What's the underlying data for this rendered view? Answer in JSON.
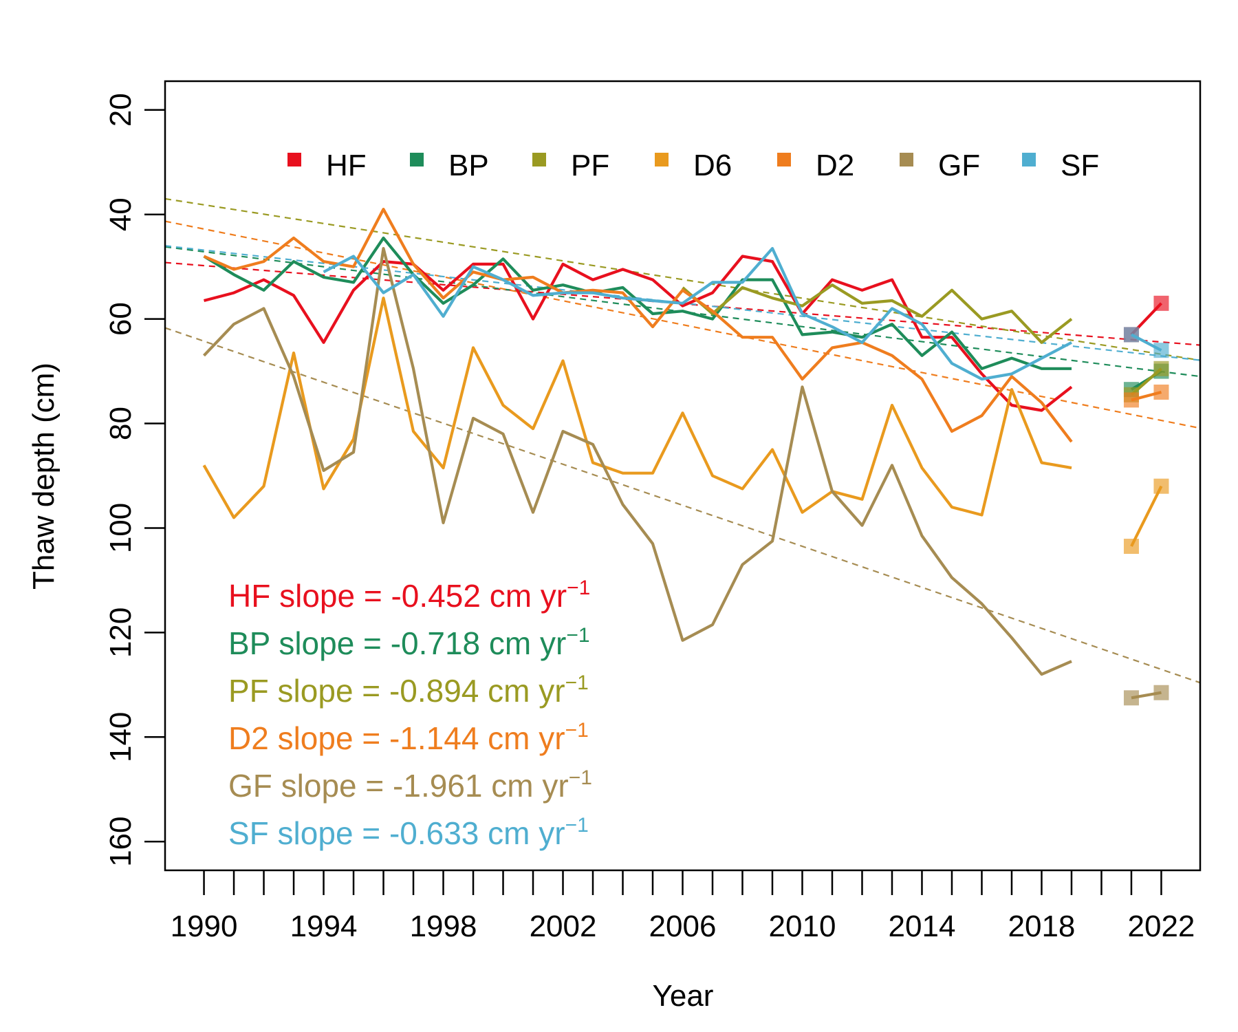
{
  "chart_data": {
    "type": "line",
    "title": "",
    "xlabel": "Year",
    "ylabel": "Thaw depth (cm)",
    "xlim": [
      1988.7,
      2023.3
    ],
    "ylim": [
      165.5,
      14.5
    ],
    "y_inverted": true,
    "x_ticks": [
      1990,
      1991,
      1992,
      1993,
      1994,
      1995,
      1996,
      1997,
      1998,
      1999,
      2000,
      2001,
      2002,
      2003,
      2004,
      2005,
      2006,
      2007,
      2008,
      2009,
      2010,
      2011,
      2012,
      2013,
      2014,
      2015,
      2016,
      2017,
      2018,
      2019,
      2020,
      2021,
      2022
    ],
    "x_tick_labels": [
      {
        "value": 1990,
        "label": "1990"
      },
      {
        "value": 1994,
        "label": "1994"
      },
      {
        "value": 1998,
        "label": "1998"
      },
      {
        "value": 2002,
        "label": "2002"
      },
      {
        "value": 2006,
        "label": "2006"
      },
      {
        "value": 2010,
        "label": "2010"
      },
      {
        "value": 2014,
        "label": "2014"
      },
      {
        "value": 2018,
        "label": "2018"
      },
      {
        "value": 2022,
        "label": "2022"
      }
    ],
    "y_ticks": [
      20,
      40,
      60,
      80,
      100,
      120,
      140,
      160
    ],
    "y_tick_labels": [
      "20",
      "40",
      "60",
      "80",
      "100",
      "120",
      "140",
      "160"
    ],
    "grid": false,
    "legend_position": "top",
    "series": [
      {
        "name": "HF",
        "color": "#E8101E",
        "x": [
          1990,
          1991,
          1992,
          1993,
          1994,
          1995,
          1996,
          1997,
          1998,
          1999,
          2000,
          2001,
          2002,
          2003,
          2004,
          2005,
          2006,
          2007,
          2008,
          2009,
          2010,
          2011,
          2012,
          2013,
          2014,
          2015,
          2016,
          2017,
          2018,
          2019
        ],
        "y": [
          56.5,
          55,
          52.5,
          55.5,
          64.5,
          54.5,
          49,
          49.5,
          54.5,
          49.5,
          49.5,
          60,
          49.5,
          52.5,
          50.5,
          52.5,
          57.5,
          55,
          48,
          49,
          59,
          52.5,
          54.5,
          52.5,
          63.5,
          63.5,
          70.5,
          76.5,
          77.5,
          73
        ],
        "recent": {
          "x": [
            2021,
            2022
          ],
          "y": [
            63,
            57
          ]
        },
        "trend": {
          "x": [
            1988.7,
            2023.3
          ],
          "y": [
            49.2,
            65.0
          ]
        },
        "slope_label": "HF slope =  -0.452 cm yr",
        "slope_exp": "−1"
      },
      {
        "name": "BP",
        "color": "#1E8C5A",
        "x": [
          1990,
          1991,
          1992,
          1993,
          1994,
          1995,
          1996,
          1997,
          1998,
          1999,
          2000,
          2001,
          2002,
          2003,
          2004,
          2005,
          2006,
          2007,
          2008,
          2009,
          2010,
          2011,
          2012,
          2013,
          2014,
          2015,
          2016,
          2017,
          2018,
          2019
        ],
        "y": [
          48,
          51.5,
          54.5,
          49,
          52,
          53,
          44.5,
          51.5,
          57,
          53.5,
          48.5,
          54.5,
          53.5,
          55,
          54,
          59,
          58.5,
          60,
          52.5,
          52.5,
          63,
          62.5,
          63.5,
          61,
          67,
          62.5,
          69.5,
          67.5,
          69.5,
          69.5
        ],
        "recent": {
          "x": [
            2021,
            2022
          ],
          "y": [
            73.5,
            70
          ]
        },
        "trend": {
          "x": [
            1988.7,
            2023.3
          ],
          "y": [
            46.2,
            71.0
          ]
        },
        "slope_label": "BP slope =  -0.718 cm yr",
        "slope_exp": "−1"
      },
      {
        "name": "PF",
        "color": "#9A9A22",
        "x": [
          2006,
          2007,
          2008,
          2009,
          2010,
          2011,
          2012,
          2013,
          2014,
          2015,
          2016,
          2017,
          2018,
          2019
        ],
        "y": [
          54,
          59,
          54,
          56,
          57.5,
          53.5,
          57,
          56.5,
          59.5,
          54.5,
          60,
          58.5,
          64.5,
          60
        ],
        "recent": {
          "x": [
            2021,
            2022
          ],
          "y": [
            74.5,
            69.5
          ]
        },
        "trend": {
          "x": [
            1988.7,
            2023.3
          ],
          "y": [
            37.0,
            67.9
          ]
        },
        "slope_label": "PF slope =  -0.894 cm yr",
        "slope_exp": "−1"
      },
      {
        "name": "D6",
        "color": "#E99A1E",
        "x": [
          1990,
          1991,
          1992,
          1993,
          1994,
          1995,
          1996,
          1997,
          1998,
          1999,
          2000,
          2001,
          2002,
          2003,
          2004,
          2005,
          2006,
          2007,
          2008,
          2009,
          2010,
          2011,
          2012,
          2013,
          2014,
          2015,
          2016,
          2017,
          2018,
          2019
        ],
        "y": [
          88,
          98,
          92,
          66.5,
          92.5,
          83,
          56,
          81.5,
          88.5,
          65.5,
          76.5,
          81,
          68,
          87.5,
          89.5,
          89.5,
          78,
          90,
          92.5,
          85,
          97,
          93,
          94.5,
          76.5,
          88.5,
          96,
          97.5,
          73.5,
          87.5,
          88.5
        ],
        "recent": {
          "x": [
            2021,
            2022
          ],
          "y": [
            103.5,
            92
          ]
        },
        "slope_label": "",
        "slope_exp": ""
      },
      {
        "name": "D2",
        "color": "#EF7D1E",
        "x": [
          1990,
          1991,
          1992,
          1993,
          1994,
          1995,
          1996,
          1997,
          1998,
          1999,
          2000,
          2001,
          2002,
          2003,
          2004,
          2005,
          2006,
          2007,
          2008,
          2009,
          2010,
          2011,
          2012,
          2013,
          2014,
          2015,
          2016,
          2017,
          2018,
          2019
        ],
        "y": [
          48,
          50.5,
          49,
          44.5,
          49,
          50,
          39,
          49.5,
          56,
          51,
          52.5,
          52,
          55,
          54.5,
          55,
          61.5,
          54.5,
          58.5,
          63.5,
          63.5,
          71.5,
          65.5,
          64.5,
          67,
          71.5,
          81.5,
          78.5,
          71,
          76,
          83.5
        ],
        "recent": {
          "x": [
            2021,
            2022
          ],
          "y": [
            75.5,
            74
          ]
        },
        "trend": {
          "x": [
            1988.7,
            2023.3
          ],
          "y": [
            41.3,
            80.9
          ]
        },
        "slope_label": "D2 slope =  -1.144 cm yr",
        "slope_exp": "−1"
      },
      {
        "name": "GF",
        "color": "#A68C52",
        "x": [
          1990,
          1991,
          1992,
          1993,
          1994,
          1995,
          1996,
          1997,
          1998,
          1999,
          2000,
          2001,
          2002,
          2003,
          2004,
          2005,
          2006,
          2007,
          2008,
          2009,
          2010,
          2011,
          2012,
          2013,
          2014,
          2015,
          2016,
          2017,
          2018,
          2019
        ],
        "y": [
          67,
          61,
          58,
          71,
          89,
          85.5,
          46.5,
          69.5,
          99,
          79,
          82,
          97,
          81.5,
          84,
          95.5,
          103,
          121.5,
          118.5,
          107,
          102.5,
          73,
          93,
          99.5,
          88,
          101.5,
          109.5,
          114.5,
          121,
          128,
          125.5
        ],
        "recent": {
          "x": [
            2021,
            2022
          ],
          "y": [
            132.5,
            131.5
          ]
        },
        "trend": {
          "x": [
            1988.7,
            2023.3
          ],
          "y": [
            61.7,
            129.6
          ]
        },
        "slope_label": "GF slope =  -1.961 cm yr",
        "slope_exp": "−1"
      },
      {
        "name": "SF",
        "color": "#4FAED0",
        "x": [
          1994,
          1995,
          1996,
          1997,
          1998,
          1999,
          2000,
          2001,
          2002,
          2003,
          2004,
          2005,
          2006,
          2007,
          2008,
          2009,
          2010,
          2011,
          2012,
          2013,
          2014,
          2015,
          2016,
          2017,
          2018,
          2019
        ],
        "y": [
          51,
          48,
          55,
          51.5,
          59.5,
          50,
          52.5,
          55.5,
          55,
          55,
          56,
          56.5,
          57,
          53,
          53,
          46.5,
          59,
          61.5,
          64.5,
          58,
          61,
          68.5,
          71.5,
          70.5,
          67.5,
          64.5
        ],
        "recent": {
          "x": [
            2021,
            2022
          ],
          "y": [
            63,
            66
          ]
        },
        "trend": {
          "x": [
            1988.7,
            2023.3
          ],
          "y": [
            46.0,
            67.9
          ]
        },
        "slope_label": "SF slope =  -0.633 cm yr",
        "slope_exp": "−1"
      }
    ]
  }
}
